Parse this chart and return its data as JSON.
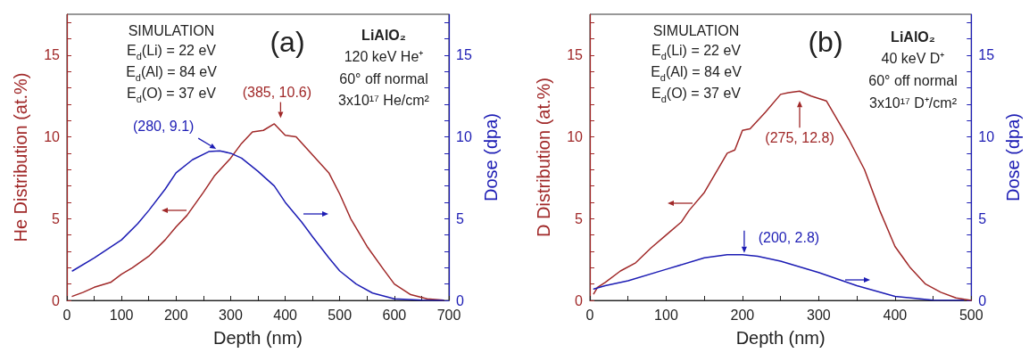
{
  "chart_data": [
    {
      "type": "line",
      "xlabel": "Depth (nm)",
      "ylabel": "He Distribution (at.%)",
      "y2label": "Dose (dpa)",
      "xlim": [
        0,
        700
      ],
      "xticks": [
        0,
        {
          "value": 50,
          "label": null
        },
        100,
        {
          "value": 150,
          "label": null
        },
        200,
        {
          "value": 250,
          "label": null
        },
        300,
        {
          "value": 350,
          "label": null
        },
        400,
        {
          "value": 450,
          "label": null
        },
        500,
        {
          "value": 550,
          "label": null
        },
        600,
        {
          "value": 650,
          "label": null
        },
        700
      ],
      "ylim": [
        0,
        17.5
      ],
      "yticks": [
        0,
        {
          "value": 1,
          "label": null
        },
        {
          "value": 2,
          "label": null
        },
        {
          "value": 3,
          "label": null
        },
        {
          "value": 4,
          "label": null
        },
        5,
        {
          "value": 6,
          "label": null
        },
        {
          "value": 7,
          "label": null
        },
        {
          "value": 8,
          "label": null
        },
        {
          "value": 9,
          "label": null
        },
        10,
        {
          "value": 11,
          "label": null
        },
        {
          "value": 12,
          "label": null
        },
        {
          "value": 13,
          "label": null
        },
        {
          "value": 14,
          "label": null
        },
        15,
        {
          "value": 16,
          "label": null
        },
        {
          "value": 17,
          "label": null
        }
      ],
      "y2lim": [
        0,
        17.5
      ],
      "y2ticks": [
        0,
        {
          "value": 1,
          "label": null
        },
        {
          "value": 2,
          "label": null
        },
        {
          "value": 3,
          "label": null
        },
        {
          "value": 4,
          "label": null
        },
        5,
        {
          "value": 6,
          "label": null
        },
        {
          "value": 7,
          "label": null
        },
        {
          "value": 8,
          "label": null
        },
        {
          "value": 9,
          "label": null
        },
        10,
        {
          "value": 11,
          "label": null
        },
        {
          "value": 12,
          "label": null
        },
        {
          "value": 13,
          "label": null
        },
        {
          "value": 14,
          "label": null
        },
        15,
        {
          "value": 16,
          "label": null
        },
        {
          "value": 17,
          "label": null
        }
      ],
      "grid": false,
      "marker": "none",
      "line_style": "solid",
      "series": [
        {
          "color": "#a02828",
          "x": [
            10,
            30,
            50,
            80,
            100,
            120,
            150,
            180,
            200,
            220,
            250,
            270,
            300,
            320,
            340,
            360,
            380,
            400,
            420,
            450,
            480,
            500,
            520,
            550,
            580,
            600,
            630,
            660,
            690
          ],
          "values": [
            0.25,
            0.5,
            0.8,
            1.1,
            1.6,
            2.0,
            2.7,
            3.7,
            4.5,
            5.2,
            6.6,
            7.6,
            8.7,
            9.6,
            10.3,
            10.4,
            10.8,
            10.1,
            10.0,
            8.9,
            7.8,
            6.5,
            5.0,
            3.3,
            1.9,
            1.0,
            0.35,
            0.1,
            0.02
          ]
        },
        {
          "color": "#1c1cb4",
          "axis": "y2",
          "x": [
            10,
            50,
            100,
            130,
            150,
            180,
            200,
            230,
            260,
            280,
            300,
            320,
            350,
            380,
            400,
            430,
            450,
            480,
            500,
            530,
            560,
            600,
            650,
            690
          ],
          "values": [
            1.8,
            2.6,
            3.7,
            4.7,
            5.5,
            6.8,
            7.8,
            8.6,
            9.1,
            9.15,
            9.0,
            8.7,
            7.9,
            7.0,
            6.0,
            4.8,
            3.9,
            2.6,
            1.8,
            1.0,
            0.45,
            0.1,
            0.02,
            0
          ]
        }
      ],
      "annotations": [
        "SIMULATION",
        "E$_{d}$(Li) = 22 eV",
        "E$_{d}$(Al) = 84 eV",
        "E$_{d}$(O) = 37 eV",
        "(a)",
        "LiAlO₂",
        "120 keV He⁺",
        "60° off normal",
        "3x10¹⁷ He/cm²",
        {
          "text": "(385, 10.6)",
          "x": 385,
          "y": 10.6
        },
        {
          "text": "(280, 9.1)",
          "x": 280,
          "y": 9.1
        }
      ]
    },
    {
      "type": "line",
      "xlabel": "Depth (nm)",
      "ylabel": "D Distribution (at.%)",
      "y2label": "Dose (dpa)",
      "xlim": [
        0,
        500
      ],
      "xticks": [
        0,
        {
          "value": 50,
          "label": null
        },
        100,
        {
          "value": 150,
          "label": null
        },
        200,
        {
          "value": 250,
          "label": null
        },
        300,
        {
          "value": 350,
          "label": null
        },
        400,
        {
          "value": 450,
          "label": null
        },
        500
      ],
      "ylim": [
        0,
        17.5
      ],
      "yticks": [
        0,
        {
          "value": 1,
          "label": null
        },
        {
          "value": 2,
          "label": null
        },
        {
          "value": 3,
          "label": null
        },
        {
          "value": 4,
          "label": null
        },
        5,
        {
          "value": 6,
          "label": null
        },
        {
          "value": 7,
          "label": null
        },
        {
          "value": 8,
          "label": null
        },
        {
          "value": 9,
          "label": null
        },
        10,
        {
          "value": 11,
          "label": null
        },
        {
          "value": 12,
          "label": null
        },
        {
          "value": 13,
          "label": null
        },
        {
          "value": 14,
          "label": null
        },
        15,
        {
          "value": 16,
          "label": null
        },
        {
          "value": 17,
          "label": null
        }
      ],
      "y2lim": [
        0,
        17.5
      ],
      "y2ticks": [
        0,
        {
          "value": 1,
          "label": null
        },
        {
          "value": 2,
          "label": null
        },
        {
          "value": 3,
          "label": null
        },
        {
          "value": 4,
          "label": null
        },
        5,
        {
          "value": 6,
          "label": null
        },
        {
          "value": 7,
          "label": null
        },
        {
          "value": 8,
          "label": null
        },
        {
          "value": 9,
          "label": null
        },
        10,
        {
          "value": 11,
          "label": null
        },
        {
          "value": 12,
          "label": null
        },
        {
          "value": 13,
          "label": null
        },
        {
          "value": 14,
          "label": null
        },
        15,
        {
          "value": 16,
          "label": null
        },
        {
          "value": 17,
          "label": null
        }
      ],
      "grid": false,
      "marker": "none",
      "line_style": "solid",
      "series": [
        {
          "color": "#a02828",
          "x": [
            5,
            10,
            20,
            40,
            60,
            80,
            100,
            120,
            130,
            150,
            170,
            180,
            190,
            200,
            210,
            230,
            250,
            260,
            275,
            290,
            310,
            325,
            340,
            360,
            380,
            400,
            420,
            440,
            460,
            480,
            500
          ],
          "values": [
            0.4,
            0.8,
            1.1,
            1.8,
            2.3,
            3.2,
            4.0,
            4.8,
            5.5,
            6.6,
            8.2,
            9.0,
            9.2,
            10.4,
            10.5,
            11.5,
            12.6,
            12.7,
            12.8,
            12.5,
            12.2,
            11.0,
            9.8,
            8.0,
            5.5,
            3.3,
            2.0,
            1.0,
            0.5,
            0.15,
            0
          ]
        },
        {
          "color": "#1c1cb4",
          "axis": "y2",
          "x": [
            5,
            20,
            50,
            100,
            150,
            180,
            200,
            220,
            250,
            300,
            350,
            400,
            450,
            490
          ],
          "values": [
            0.7,
            0.9,
            1.2,
            1.9,
            2.6,
            2.8,
            2.8,
            2.7,
            2.4,
            1.7,
            0.9,
            0.25,
            0.02,
            0
          ]
        }
      ],
      "annotations": [
        "SIMULATION",
        "E$_{d}$(Li) = 22 eV",
        "E$_{d}$(Al) = 84 eV",
        "E$_{d}$(O) = 37 eV",
        "(b)",
        "LiAlO₂",
        "40 keV D⁺",
        "60° off normal",
        "3x10¹⁷ D⁺/cm²",
        {
          "text": "(275, 12.8)",
          "x": 275,
          "y": 12.8
        },
        {
          "text": "(200, 2.8)",
          "x": 200,
          "y": 2.8
        }
      ]
    }
  ]
}
